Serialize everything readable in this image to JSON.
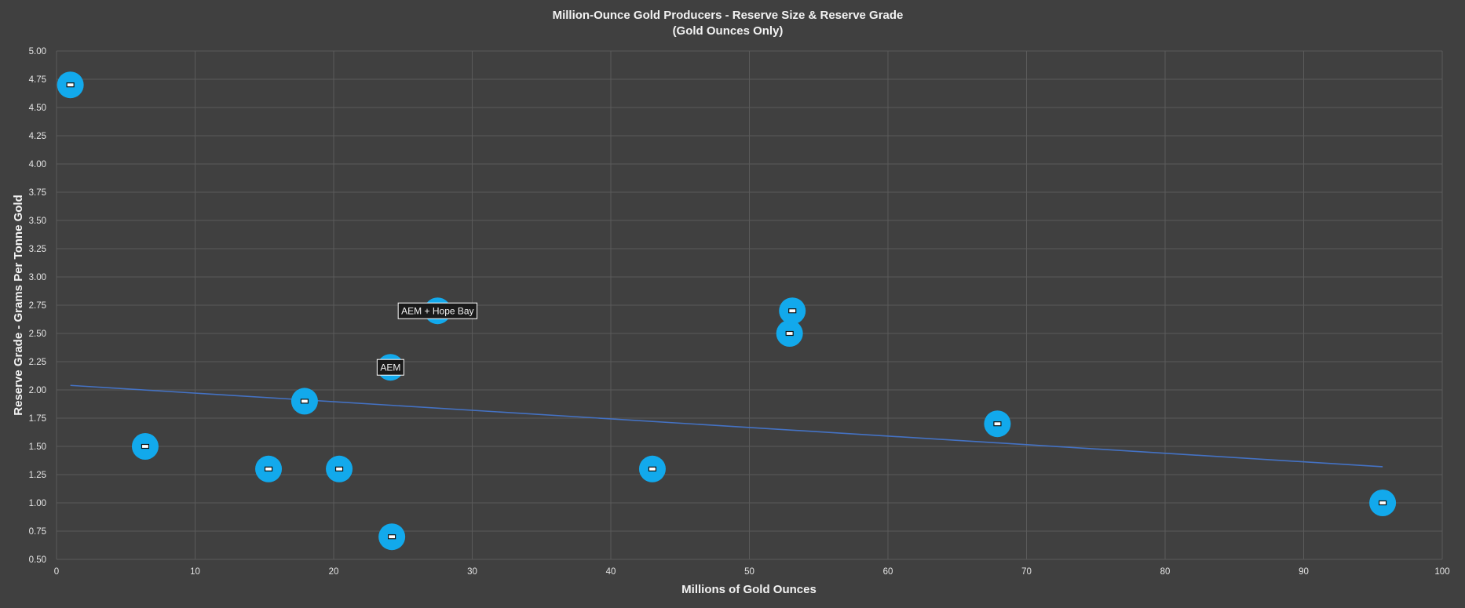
{
  "chart_data": {
    "type": "scatter",
    "title": "Million-Ounce Gold Producers - Reserve Size & Reserve Grade",
    "subtitle": "(Gold Ounces Only)",
    "xlabel": "Millions of Gold Ounces",
    "ylabel": "Reserve Grade - Grams Per Tonne Gold",
    "xlim": [
      0,
      100
    ],
    "ylim": [
      0.5,
      5.0
    ],
    "x_ticks": [
      "0",
      "10",
      "20",
      "30",
      "40",
      "50",
      "60",
      "70",
      "80",
      "90",
      "100"
    ],
    "y_ticks": [
      "0.50",
      "0.75",
      "1.00",
      "1.25",
      "1.50",
      "1.75",
      "2.00",
      "2.25",
      "2.50",
      "2.75",
      "3.00",
      "3.25",
      "3.50",
      "3.75",
      "4.00",
      "4.25",
      "4.50",
      "4.75",
      "5.00"
    ],
    "grid": true,
    "legend": "none",
    "points": [
      {
        "x": 1.0,
        "y": 4.7
      },
      {
        "x": 6.4,
        "y": 1.5
      },
      {
        "x": 15.3,
        "y": 1.3
      },
      {
        "x": 17.9,
        "y": 1.9
      },
      {
        "x": 20.4,
        "y": 1.3
      },
      {
        "x": 24.1,
        "y": 2.2
      },
      {
        "x": 24.2,
        "y": 0.7
      },
      {
        "x": 27.5,
        "y": 2.7
      },
      {
        "x": 43.0,
        "y": 1.3
      },
      {
        "x": 52.9,
        "y": 2.5
      },
      {
        "x": 53.1,
        "y": 2.7
      },
      {
        "x": 67.9,
        "y": 1.7
      },
      {
        "x": 95.7,
        "y": 1.0
      }
    ],
    "trendline": {
      "x": [
        1.0,
        95.7
      ],
      "y": [
        2.04,
        1.32
      ],
      "color": "#4472c4"
    },
    "annotations": [
      {
        "text": "AEM",
        "x": 24.1,
        "y": 2.2
      },
      {
        "text": "AEM + Hope Bay",
        "x": 27.5,
        "y": 2.7
      }
    ],
    "colors": {
      "background": "#404040",
      "point": "#12a9ec",
      "trendline": "#4472c4"
    }
  }
}
